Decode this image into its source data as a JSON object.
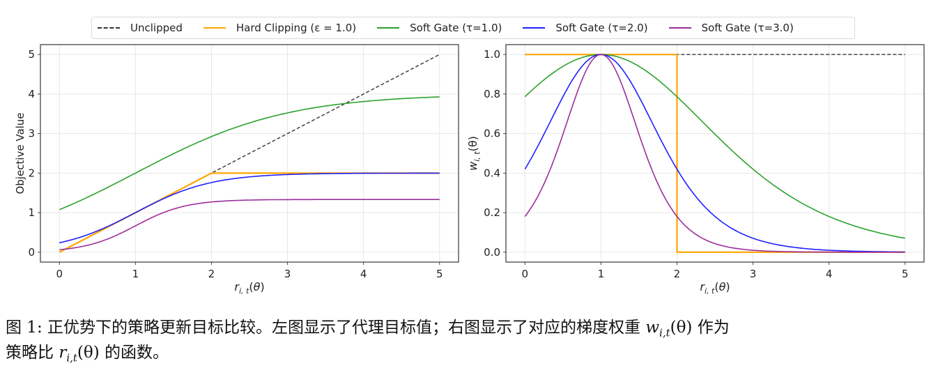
{
  "legend": {
    "items": [
      {
        "label": "Unclipped",
        "color": "#333333",
        "style": "dashed"
      },
      {
        "label": "Hard Clipping (ε = 1.0)",
        "color": "#ffa500",
        "style": "solid"
      },
      {
        "label": "Soft Gate (τ=1.0)",
        "color": "#2ca02c",
        "style": "solid"
      },
      {
        "label": "Soft Gate (τ=2.0)",
        "color": "#1f1fff",
        "style": "solid"
      },
      {
        "label": "Soft Gate (τ=3.0)",
        "color": "#9b2d9b",
        "style": "solid"
      }
    ]
  },
  "caption": {
    "line1_a": "图 1: 正优势下的策略更新目标比较。左图显示了代理目标值；右图显示了对应的梯度权重 ",
    "line1_math": "w",
    "line1_sub": "i,t",
    "line1_paren": "(θ)",
    "line1_b": " 作为",
    "line2_a": "策略比 ",
    "line2_math": "r",
    "line2_sub": "i,t",
    "line2_paren": "(θ)",
    "line2_b": " 的函数。"
  },
  "chart_data": [
    {
      "type": "line",
      "title": "",
      "xlabel": "r_{i,t}(θ)",
      "ylabel": "Objective Value",
      "xlim": [
        -0.25,
        5.25
      ],
      "ylim": [
        -0.25,
        5.25
      ],
      "xticks": [
        0,
        1,
        2,
        3,
        4,
        5
      ],
      "yticks": [
        0,
        1,
        2,
        3,
        4,
        5
      ],
      "grid": true,
      "x": [
        0,
        0.5,
        1,
        1.5,
        2,
        2.5,
        3,
        3.5,
        4,
        4.5,
        5
      ],
      "series": [
        {
          "name": "Unclipped",
          "color": "#333333",
          "dash": true,
          "values": [
            0,
            0.5,
            1,
            1.5,
            2,
            2.5,
            3,
            3.5,
            4,
            4.5,
            5
          ]
        },
        {
          "name": "Hard Clipping (ε = 1.0)",
          "color": "#ffa500",
          "values": [
            0,
            0.5,
            1,
            1.5,
            2,
            2,
            2,
            2,
            2,
            2,
            2
          ]
        },
        {
          "name": "Soft Gate (τ=1.0)",
          "color": "#2ca02c",
          "values": [
            1.08,
            1.5,
            2.0,
            2.49,
            2.92,
            3.27,
            3.52,
            3.7,
            3.81,
            3.88,
            3.93
          ]
        },
        {
          "name": "Soft Gate (τ=2.0)",
          "color": "#1f1fff",
          "values": [
            0.24,
            0.54,
            1.0,
            1.46,
            1.76,
            1.9,
            1.96,
            1.99,
            2.0,
            2.0,
            2.0
          ]
        },
        {
          "name": "Soft Gate (τ=3.0)",
          "color": "#9b2d9b",
          "values": [
            0.06,
            0.25,
            0.67,
            1.09,
            1.27,
            1.32,
            1.33,
            1.33,
            1.33,
            1.33,
            1.33
          ]
        }
      ]
    },
    {
      "type": "line",
      "title": "",
      "xlabel": "r_{i,t}(θ)",
      "ylabel": "w_{i,t}(θ)",
      "xlim": [
        -0.25,
        5.25
      ],
      "ylim": [
        -0.05,
        1.05
      ],
      "xticks": [
        0,
        1,
        2,
        3,
        4,
        5
      ],
      "yticks": [
        0.0,
        0.2,
        0.4,
        0.6,
        0.8,
        1.0
      ],
      "grid": true,
      "x": [
        0,
        0.5,
        1,
        1.5,
        2,
        2.5,
        3,
        3.5,
        4,
        4.5,
        5
      ],
      "series": [
        {
          "name": "Unclipped",
          "color": "#333333",
          "dash": true,
          "values": [
            1,
            1,
            1,
            1,
            1,
            1,
            1,
            1,
            1,
            1,
            1
          ]
        },
        {
          "name": "Hard Clipping (ε = 1.0)",
          "color": "#ffa500",
          "values": [
            1,
            1,
            1,
            1,
            1,
            0,
            0,
            0,
            0,
            0,
            0
          ]
        },
        {
          "name": "Soft Gate (τ=1.0)",
          "color": "#2ca02c",
          "values": [
            0.79,
            0.94,
            1.0,
            0.94,
            0.79,
            0.6,
            0.42,
            0.28,
            0.18,
            0.11,
            0.07
          ]
        },
        {
          "name": "Soft Gate (τ=2.0)",
          "color": "#1f1fff",
          "values": [
            0.42,
            0.79,
            1.0,
            0.79,
            0.42,
            0.18,
            0.07,
            0.03,
            0.01,
            0.0,
            0.0
          ]
        },
        {
          "name": "Soft Gate (τ=3.0)",
          "color": "#9b2d9b",
          "values": [
            0.18,
            0.6,
            1.0,
            0.6,
            0.18,
            0.04,
            0.01,
            0.0,
            0.0,
            0.0,
            0.0
          ]
        }
      ]
    }
  ]
}
